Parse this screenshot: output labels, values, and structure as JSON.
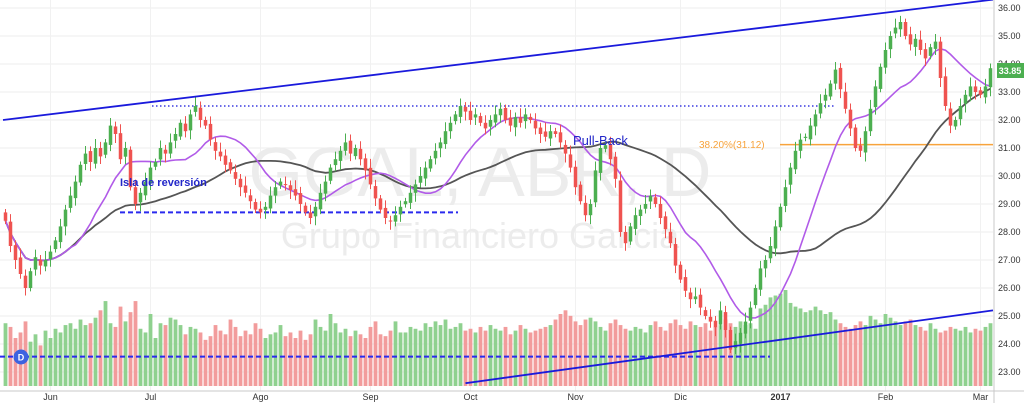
{
  "chart_data": {
    "type": "candlestick",
    "watermark": {
      "symbol": "GGAL, ABR, D",
      "name": "Grupo Financiero Galicia"
    },
    "y_axis": {
      "ylim": [
        22.6,
        36.3
      ],
      "ticks": [
        "23.00",
        "24.00",
        "25.00",
        "26.00",
        "27.00",
        "28.00",
        "29.00",
        "30.00",
        "31.00",
        "32.00",
        "33.00",
        "34.00",
        "35.00",
        "36.00"
      ],
      "last_price": "33.85"
    },
    "x_axis": {
      "labels": [
        {
          "text": "Jun",
          "i": 9
        },
        {
          "text": "Jul",
          "i": 29
        },
        {
          "text": "Ago",
          "i": 51
        },
        {
          "text": "Sep",
          "i": 73
        },
        {
          "text": "Oct",
          "i": 93
        },
        {
          "text": "Nov",
          "i": 114
        },
        {
          "text": "Dic",
          "i": 135
        },
        {
          "text": "2017",
          "i": 155
        },
        {
          "text": "Feb",
          "i": 176
        },
        {
          "text": "Mar",
          "i": 195
        }
      ]
    },
    "closes": [
      28.4,
      27.5,
      27.0,
      26.5,
      26.0,
      26.6,
      27.1,
      26.8,
      27.0,
      27.3,
      27.7,
      28.2,
      28.8,
      29.3,
      29.8,
      30.4,
      30.8,
      30.5,
      31.0,
      30.7,
      31.2,
      31.8,
      31.5,
      30.6,
      31.0,
      29.6,
      29.0,
      29.4,
      29.8,
      30.3,
      30.5,
      31.0,
      30.8,
      31.2,
      31.5,
      31.9,
      31.6,
      32.2,
      32.5,
      32.0,
      31.8,
      31.3,
      30.9,
      30.7,
      30.4,
      30.2,
      29.9,
      29.6,
      29.4,
      29.1,
      28.8,
      28.7,
      28.9,
      29.3,
      29.6,
      29.8,
      29.7,
      29.5,
      29.3,
      29.0,
      28.7,
      28.5,
      28.9,
      29.4,
      29.8,
      30.3,
      30.6,
      30.9,
      31.2,
      30.8,
      31.0,
      30.6,
      30.2,
      29.7,
      29.2,
      28.8,
      28.5,
      28.4,
      28.6,
      28.9,
      29.1,
      29.4,
      29.7,
      30.0,
      30.3,
      30.6,
      30.9,
      31.2,
      31.6,
      31.9,
      32.2,
      32.5,
      32.3,
      32.0,
      32.2,
      31.9,
      31.7,
      32.0,
      32.2,
      32.4,
      32.0,
      31.8,
      32.1,
      31.9,
      32.2,
      32.0,
      31.7,
      31.5,
      31.4,
      31.6,
      31.5,
      31.2,
      30.8,
      30.3,
      29.6,
      29.1,
      28.6,
      29.0,
      30.2,
      31.0,
      31.1,
      30.6,
      29.9,
      28.0,
      27.6,
      28.2,
      28.6,
      28.8,
      29.0,
      29.3,
      29.0,
      28.5,
      28.1,
      27.6,
      26.8,
      26.3,
      25.9,
      25.6,
      25.7,
      25.3,
      25.0,
      24.8,
      24.6,
      25.2,
      24.5,
      23.8,
      24.1,
      24.4,
      24.8,
      25.3,
      26.0,
      26.7,
      27.0,
      27.5,
      28.2,
      28.9,
      29.6,
      30.3,
      30.9,
      31.3,
      31.4,
      31.8,
      32.2,
      32.6,
      32.9,
      33.3,
      33.8,
      33.1,
      32.4,
      31.7,
      31.0,
      30.9,
      31.6,
      32.4,
      33.2,
      33.9,
      34.5,
      35.0,
      35.3,
      35.5,
      35.0,
      34.7,
      34.9,
      34.5,
      34.2,
      34.6,
      34.8,
      33.5,
      32.5,
      31.8,
      32.0,
      32.5,
      32.9,
      33.2,
      33.0,
      32.9,
      33.2,
      33.85
    ],
    "volumes": [
      3.4,
      3.2,
      2.6,
      2.9,
      3.5,
      2.4,
      2.8,
      2.2,
      3.0,
      2.6,
      3.1,
      2.9,
      3.3,
      3.4,
      3.1,
      3.6,
      3.3,
      3.4,
      3.7,
      4.1,
      4.6,
      3.4,
      3.2,
      4.3,
      3.5,
      4.0,
      4.6,
      3.1,
      2.9,
      3.9,
      2.6,
      3.4,
      3.3,
      3.7,
      3.6,
      3.3,
      2.8,
      3.2,
      3.1,
      2.9,
      2.5,
      2.7,
      3.3,
      3.0,
      2.8,
      3.6,
      3.2,
      2.7,
      3.0,
      2.8,
      3.4,
      3.1,
      2.6,
      2.8,
      2.9,
      3.3,
      2.7,
      2.9,
      2.6,
      3.0,
      2.5,
      2.8,
      3.6,
      3.2,
      3.0,
      3.9,
      3.4,
      2.9,
      3.1,
      2.7,
      3.0,
      2.8,
      2.6,
      3.2,
      3.5,
      2.8,
      2.7,
      3.0,
      3.5,
      2.9,
      2.9,
      3.2,
      3.1,
      3.0,
      3.4,
      3.2,
      3.5,
      3.3,
      3.6,
      3.1,
      3.2,
      3.4,
      3.0,
      3.1,
      2.9,
      3.2,
      3.0,
      3.3,
      3.1,
      3.0,
      3.2,
      2.8,
      3.0,
      3.3,
      3.1,
      2.9,
      3.0,
      3.1,
      3.2,
      3.3,
      3.6,
      3.9,
      4.1,
      3.8,
      3.5,
      3.3,
      3.6,
      3.7,
      3.5,
      3.2,
      3.0,
      3.4,
      3.6,
      3.3,
      3.1,
      3.0,
      3.2,
      3.1,
      2.9,
      3.3,
      3.5,
      3.2,
      3.0,
      3.4,
      3.6,
      3.3,
      3.1,
      3.5,
      3.3,
      3.2,
      3.4,
      3.0,
      3.2,
      3.3,
      3.6,
      3.4,
      3.2,
      3.5,
      3.3,
      3.4,
      3.1,
      4.2,
      4.4,
      4.8,
      4.9,
      5.0,
      5.2,
      4.5,
      4.3,
      4.2,
      4.0,
      4.1,
      4.3,
      4.1,
      3.9,
      4.0,
      3.6,
      3.4,
      3.2,
      3.1,
      3.3,
      3.5,
      3.3,
      3.8,
      3.6,
      3.4,
      3.9,
      3.7,
      3.5,
      3.3,
      3.5,
      3.6,
      3.3,
      3.2,
      3.0,
      3.4,
      3.1,
      2.9,
      3.0,
      3.2,
      3.1,
      3.0,
      3.2,
      2.9,
      3.1,
      3.0,
      3.2,
      3.4
    ],
    "annotations": {
      "reversal_island": "Isla de reversión",
      "pullback": "Pull-Back",
      "fib": "38.20%(31.12)",
      "volume_marker": "D"
    },
    "levels": {
      "fib_level": 31.12,
      "resistance_dotted": 32.5,
      "island_support": 28.7,
      "volume_dashed": 23.55
    },
    "lines": {
      "upper_channel": [
        {
          "i": 0,
          "v": 32.0
        },
        {
          "i": 205,
          "v": 36.3
        }
      ],
      "lower_channel": [
        {
          "i": 92,
          "v": 22.6
        },
        {
          "i": 205,
          "v": 25.2
        }
      ]
    },
    "colors": {
      "up": "#4caf50",
      "down": "#ef5350",
      "up_volume": "#8fd18f",
      "down_volume": "#f29c9c",
      "channel": "#1a1adc",
      "fib": "#f7a33c",
      "ma_fast": "#b15be8",
      "ma_slow": "#555555",
      "annotation": "#2226c9"
    }
  }
}
